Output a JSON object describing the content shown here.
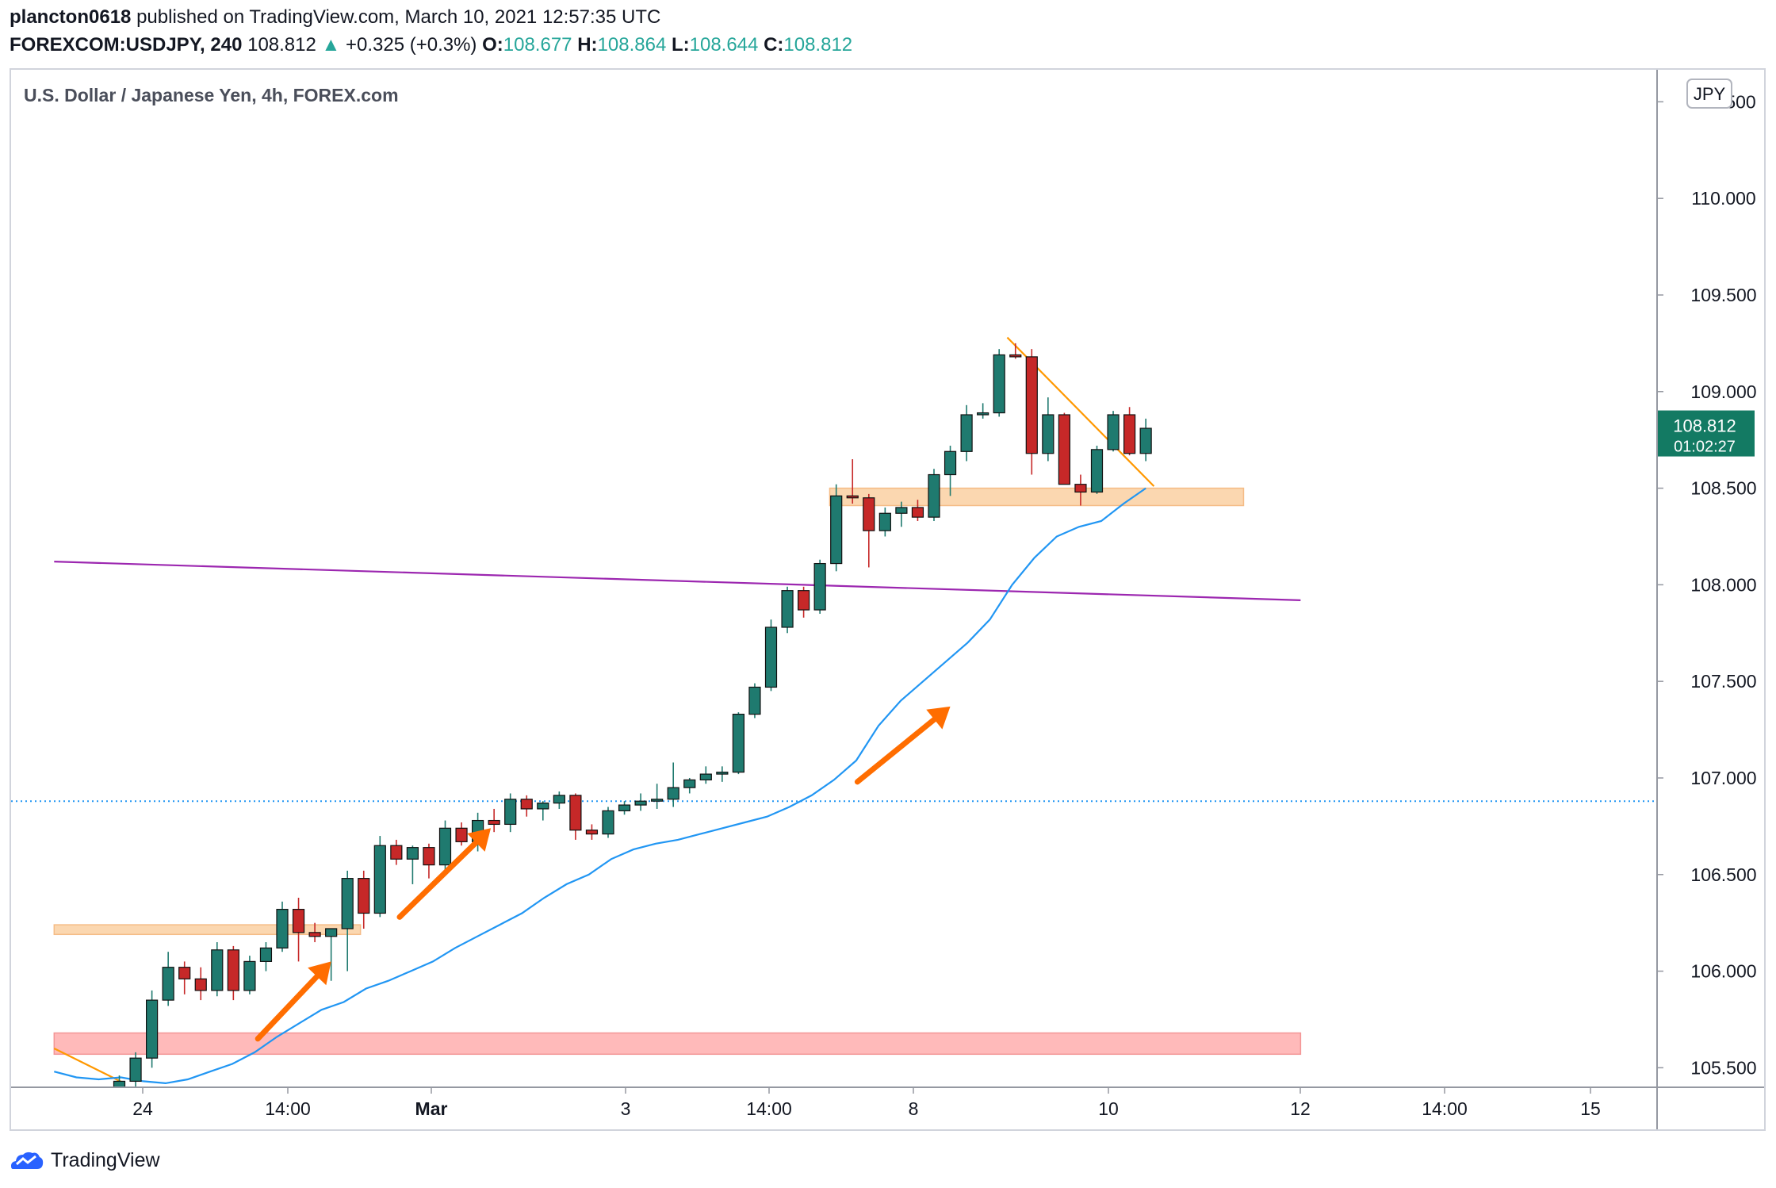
{
  "header": {
    "author": "plancton0618",
    "published_text": "published on TradingView.com, March 10, 2021 12:57:35 UTC",
    "symbol": "FOREXCOM:USDJPY, 240",
    "last": "108.812",
    "change": "+0.325 (+0.3%)",
    "o_label": "O:",
    "o": "108.677",
    "h_label": "H:",
    "h": "108.864",
    "l_label": "L:",
    "l": "108.644",
    "c_label": "C:",
    "c": "108.812"
  },
  "footer": {
    "brand": "TradingView"
  },
  "colors": {
    "up": "#1f7a6f",
    "down": "#c62828",
    "ma": "#2196f3",
    "trend_orange": "#ff9800",
    "arrow": "#ff6d00",
    "purple": "#9c27b0",
    "orange_zone": "#fbd3a8",
    "red_zone": "#ffb3b3",
    "price_badge": "#137a63"
  },
  "chart_data": {
    "type": "candlestick",
    "title": "U.S. Dollar / Japanese Yen, 4h, FOREX.com",
    "currency": "JPY",
    "y_ticks": [
      "110.000",
      "109.500",
      "109.000",
      "108.500",
      "108.000",
      "107.500",
      "107.000",
      "106.500",
      "106.000",
      "105.500"
    ],
    "y_top_partial_tick": "110.500",
    "ylim": [
      105.38,
      110.6
    ],
    "x_ticks": [
      "24",
      "14:00",
      "Mar",
      "3",
      "14:00",
      "8",
      "10",
      "12",
      "14:00",
      "15"
    ],
    "last_price": "108.812",
    "countdown": "01:02:27",
    "dotted_level": 106.88,
    "candles": [
      {
        "o": 105.4,
        "h": 105.46,
        "l": 105.37,
        "c": 105.43
      },
      {
        "o": 105.43,
        "h": 105.58,
        "l": 105.39,
        "c": 105.55
      },
      {
        "o": 105.55,
        "h": 105.9,
        "l": 105.5,
        "c": 105.85
      },
      {
        "o": 105.85,
        "h": 106.1,
        "l": 105.82,
        "c": 106.02
      },
      {
        "o": 106.02,
        "h": 106.05,
        "l": 105.88,
        "c": 105.96
      },
      {
        "o": 105.96,
        "h": 106.02,
        "l": 105.85,
        "c": 105.9
      },
      {
        "o": 105.9,
        "h": 106.15,
        "l": 105.87,
        "c": 106.11
      },
      {
        "o": 106.11,
        "h": 106.13,
        "l": 105.85,
        "c": 105.9
      },
      {
        "o": 105.9,
        "h": 106.08,
        "l": 105.88,
        "c": 106.05
      },
      {
        "o": 106.05,
        "h": 106.15,
        "l": 106.0,
        "c": 106.12
      },
      {
        "o": 106.12,
        "h": 106.36,
        "l": 106.1,
        "c": 106.32
      },
      {
        "o": 106.32,
        "h": 106.38,
        "l": 106.05,
        "c": 106.2
      },
      {
        "o": 106.2,
        "h": 106.25,
        "l": 106.15,
        "c": 106.18
      },
      {
        "o": 106.18,
        "h": 106.22,
        "l": 105.95,
        "c": 106.22
      },
      {
        "o": 106.22,
        "h": 106.52,
        "l": 106.0,
        "c": 106.48
      },
      {
        "o": 106.48,
        "h": 106.52,
        "l": 106.22,
        "c": 106.3
      },
      {
        "o": 106.3,
        "h": 106.7,
        "l": 106.28,
        "c": 106.65
      },
      {
        "o": 106.65,
        "h": 106.68,
        "l": 106.55,
        "c": 106.58
      },
      {
        "o": 106.58,
        "h": 106.65,
        "l": 106.45,
        "c": 106.64
      },
      {
        "o": 106.64,
        "h": 106.66,
        "l": 106.48,
        "c": 106.55
      },
      {
        "o": 106.55,
        "h": 106.78,
        "l": 106.52,
        "c": 106.74
      },
      {
        "o": 106.74,
        "h": 106.77,
        "l": 106.65,
        "c": 106.67
      },
      {
        "o": 106.67,
        "h": 106.82,
        "l": 106.62,
        "c": 106.78
      },
      {
        "o": 106.78,
        "h": 106.84,
        "l": 106.72,
        "c": 106.76
      },
      {
        "o": 106.76,
        "h": 106.92,
        "l": 106.72,
        "c": 106.89
      },
      {
        "o": 106.89,
        "h": 106.91,
        "l": 106.8,
        "c": 106.84
      },
      {
        "o": 106.84,
        "h": 106.88,
        "l": 106.78,
        "c": 106.87
      },
      {
        "o": 106.87,
        "h": 106.93,
        "l": 106.84,
        "c": 106.91
      },
      {
        "o": 106.91,
        "h": 106.92,
        "l": 106.68,
        "c": 106.73
      },
      {
        "o": 106.73,
        "h": 106.76,
        "l": 106.68,
        "c": 106.71
      },
      {
        "o": 106.71,
        "h": 106.85,
        "l": 106.69,
        "c": 106.83
      },
      {
        "o": 106.83,
        "h": 106.88,
        "l": 106.81,
        "c": 106.86
      },
      {
        "o": 106.86,
        "h": 106.92,
        "l": 106.83,
        "c": 106.88
      },
      {
        "o": 106.88,
        "h": 106.97,
        "l": 106.84,
        "c": 106.89
      },
      {
        "o": 106.89,
        "h": 107.08,
        "l": 106.85,
        "c": 106.95
      },
      {
        "o": 106.95,
        "h": 107.0,
        "l": 106.92,
        "c": 106.99
      },
      {
        "o": 106.99,
        "h": 107.06,
        "l": 106.97,
        "c": 107.02
      },
      {
        "o": 107.02,
        "h": 107.06,
        "l": 106.98,
        "c": 107.03
      },
      {
        "o": 107.03,
        "h": 107.34,
        "l": 107.02,
        "c": 107.33
      },
      {
        "o": 107.33,
        "h": 107.49,
        "l": 107.31,
        "c": 107.47
      },
      {
        "o": 107.47,
        "h": 107.82,
        "l": 107.45,
        "c": 107.78
      },
      {
        "o": 107.78,
        "h": 107.99,
        "l": 107.75,
        "c": 107.97
      },
      {
        "o": 107.97,
        "h": 107.99,
        "l": 107.83,
        "c": 107.87
      },
      {
        "o": 107.87,
        "h": 108.13,
        "l": 107.85,
        "c": 108.11
      },
      {
        "o": 108.11,
        "h": 108.52,
        "l": 108.07,
        "c": 108.46
      },
      {
        "o": 108.46,
        "h": 108.65,
        "l": 108.42,
        "c": 108.45
      },
      {
        "o": 108.45,
        "h": 108.47,
        "l": 108.09,
        "c": 108.28
      },
      {
        "o": 108.28,
        "h": 108.4,
        "l": 108.25,
        "c": 108.37
      },
      {
        "o": 108.37,
        "h": 108.43,
        "l": 108.3,
        "c": 108.4
      },
      {
        "o": 108.4,
        "h": 108.44,
        "l": 108.33,
        "c": 108.35
      },
      {
        "o": 108.35,
        "h": 108.6,
        "l": 108.33,
        "c": 108.57
      },
      {
        "o": 108.57,
        "h": 108.72,
        "l": 108.46,
        "c": 108.69
      },
      {
        "o": 108.69,
        "h": 108.93,
        "l": 108.64,
        "c": 108.88
      },
      {
        "o": 108.88,
        "h": 108.94,
        "l": 108.86,
        "c": 108.89
      },
      {
        "o": 108.89,
        "h": 109.22,
        "l": 108.87,
        "c": 109.19
      },
      {
        "o": 109.19,
        "h": 109.25,
        "l": 109.17,
        "c": 109.18
      },
      {
        "o": 109.18,
        "h": 109.22,
        "l": 108.57,
        "c": 108.68
      },
      {
        "o": 108.68,
        "h": 108.97,
        "l": 108.64,
        "c": 108.88
      },
      {
        "o": 108.88,
        "h": 108.89,
        "l": 108.52,
        "c": 108.52
      },
      {
        "o": 108.52,
        "h": 108.57,
        "l": 108.41,
        "c": 108.48
      },
      {
        "o": 108.48,
        "h": 108.72,
        "l": 108.47,
        "c": 108.7
      },
      {
        "o": 108.7,
        "h": 108.9,
        "l": 108.69,
        "c": 108.88
      },
      {
        "o": 108.88,
        "h": 108.92,
        "l": 108.67,
        "c": 108.68
      },
      {
        "o": 108.68,
        "h": 108.86,
        "l": 108.64,
        "c": 108.81
      }
    ],
    "ma_series": [
      105.48,
      105.45,
      105.44,
      105.45,
      105.43,
      105.42,
      105.44,
      105.48,
      105.52,
      105.58,
      105.66,
      105.73,
      105.8,
      105.84,
      105.91,
      105.95,
      106.0,
      106.05,
      106.12,
      106.18,
      106.24,
      106.3,
      106.38,
      106.45,
      106.5,
      106.58,
      106.63,
      106.66,
      106.68,
      106.71,
      106.74,
      106.77,
      106.8,
      106.85,
      106.91,
      106.99,
      107.09,
      107.27,
      107.4,
      107.5,
      107.6,
      107.7,
      107.82,
      108.0,
      108.14,
      108.25,
      108.3,
      108.33,
      108.42,
      108.5
    ],
    "ma_start_candle": -4,
    "purple_line": {
      "x0": -4.0,
      "y0": 108.12,
      "x1": 72.5,
      "y1": 107.92
    },
    "down_trend_line": {
      "x0": 54.5,
      "y0": 109.28,
      "x1": 63.5,
      "y1": 108.51
    },
    "lower_trend_line": {
      "x0": -4.0,
      "y0": 105.6,
      "x1": 0.3,
      "y1": 105.42
    },
    "zones": [
      {
        "kind": "resistance",
        "x0": -4.0,
        "x1": 14.8,
        "y0": 106.19,
        "y1": 106.24
      },
      {
        "kind": "support",
        "x0": 43.6,
        "x1": 69.0,
        "y0": 108.41,
        "y1": 108.5
      },
      {
        "kind": "demand",
        "x0": -4.0,
        "x1": 72.5,
        "y0": 105.57,
        "y1": 105.68
      }
    ],
    "arrows": [
      {
        "x0": 8.5,
        "y0": 105.65,
        "x1": 13.0,
        "y1": 106.05
      },
      {
        "x0": 17.2,
        "y0": 106.28,
        "x1": 22.8,
        "y1": 106.74
      },
      {
        "x0": 45.3,
        "y0": 106.98,
        "x1": 51.0,
        "y1": 107.37
      }
    ]
  }
}
